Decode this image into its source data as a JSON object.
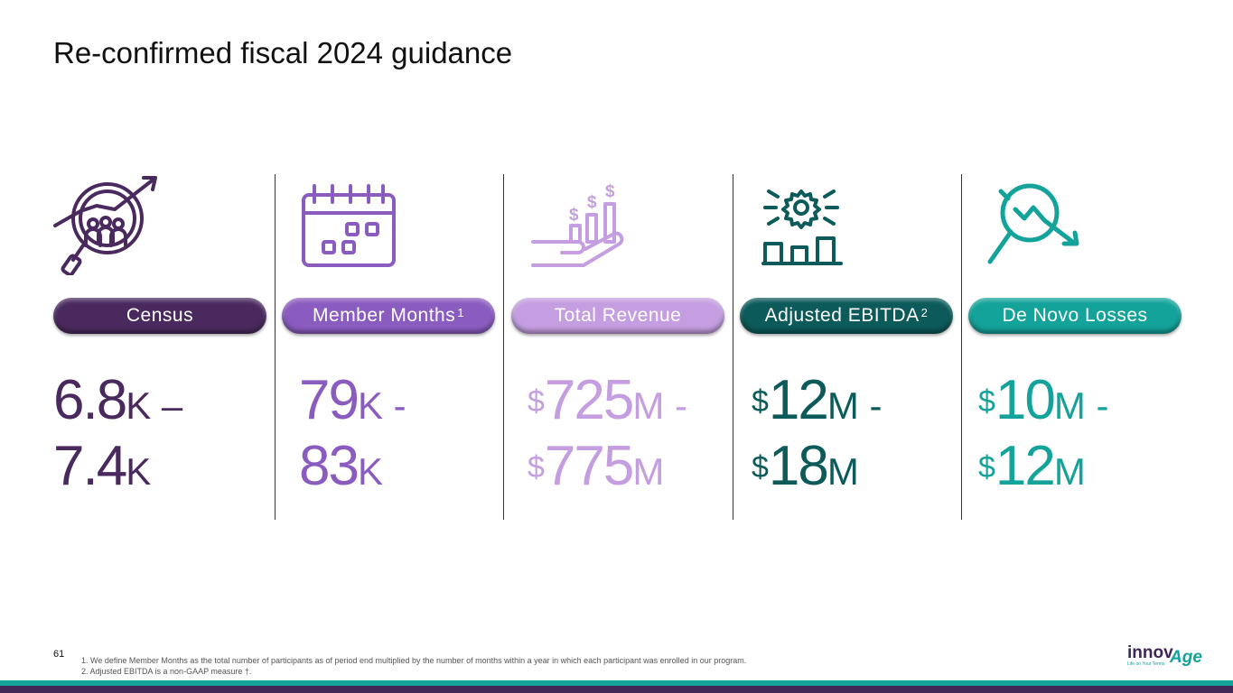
{
  "slide": {
    "title": "Re-confirmed fiscal 2024 guidance",
    "page_number": "61"
  },
  "columns": [
    {
      "label": "Census",
      "label_sup": "",
      "color": "#4a2a5e",
      "icon": "census-magnifier-growth-icon",
      "line1": {
        "a": "6.8",
        "a_unit": "K",
        "sep": " –"
      },
      "line2": {
        "a": "7.4",
        "a_unit": "K"
      }
    },
    {
      "label": "Member Months",
      "label_sup": "1",
      "color": "#8b5cbf",
      "icon": "calendar-icon",
      "line1": {
        "a": "79",
        "a_unit": "K",
        "sep": " -"
      },
      "line2": {
        "a": "83",
        "a_unit": "K"
      }
    },
    {
      "label": "Total Revenue",
      "label_sup": "",
      "color": "#c49ee0",
      "icon": "revenue-hand-chart-icon",
      "line1": {
        "cur": "$",
        "a": "725",
        "a_unit": "M",
        "sep": " -"
      },
      "line2": {
        "cur": "$",
        "a": "775",
        "a_unit": "M"
      }
    },
    {
      "label": "Adjusted EBITDA",
      "label_sup": "2",
      "color": "#0d5a5a",
      "icon": "gear-bars-icon",
      "line1": {
        "cur": "$",
        "a": "12",
        "a_unit": "M",
        "sep": " -"
      },
      "line2": {
        "cur": "$",
        "a": "18",
        "a_unit": "M"
      }
    },
    {
      "label": "De Novo Losses",
      "label_sup": "",
      "color": "#14a39a",
      "icon": "magnifier-downtrend-icon",
      "line1": {
        "cur": "$",
        "a": "10",
        "a_unit": "M",
        "sep": " -"
      },
      "line2": {
        "cur": "$",
        "a": "12",
        "a_unit": "M"
      }
    }
  ],
  "footnotes": [
    "1.  We define Member Months as the total number of participants as of period end multiplied by the number of months within a year in which each participant was enrolled in our program.",
    "2.  Adjusted EBITDA is a non-GAAP measure †."
  ],
  "logo": {
    "text_main": "innov",
    "text_accent": "Age",
    "tagline": "Life on Your Terms"
  }
}
